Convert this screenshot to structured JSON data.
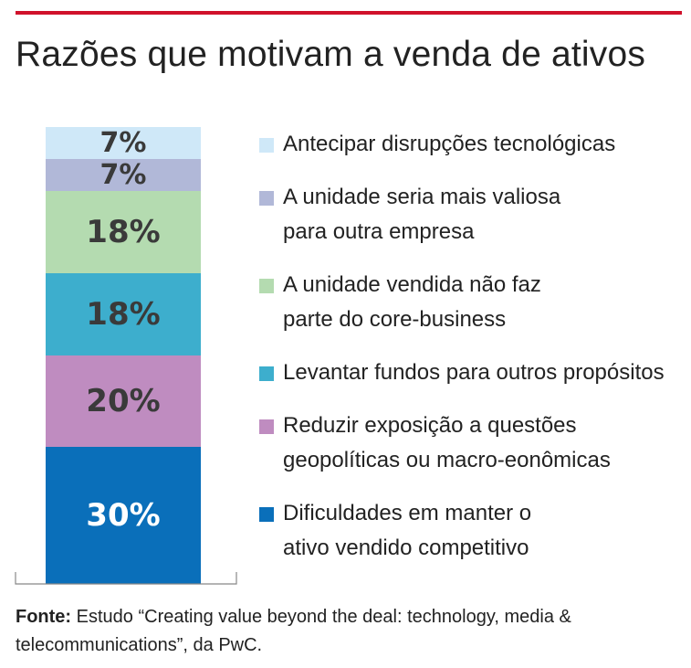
{
  "chart_data": {
    "type": "bar",
    "stacked": true,
    "title": "Razões que motivam a venda de ativos",
    "unit": "%",
    "series": [
      {
        "name": "Dificuldades em manter o\nativo vendido competitivo",
        "value": 30,
        "label": "30%",
        "color": "#0a6fba",
        "label_color": "#ffffff"
      },
      {
        "name": "Reduzir exposição a questões\ngeopolíticas ou macro-eonômicas",
        "value": 20,
        "label": "20%",
        "color": "#bf8cc0",
        "label_color": "#3a3a3a"
      },
      {
        "name": "Levantar fundos para outros propósitos",
        "value": 18,
        "label": "18%",
        "color": "#3daecd",
        "label_color": "#3a3a3a"
      },
      {
        "name": "A unidade vendida não faz\nparte do core-business",
        "value": 18,
        "label": "18%",
        "color": "#b4dbb0",
        "label_color": "#3a3a3a"
      },
      {
        "name": "A unidade  seria mais valiosa\npara outra empresa",
        "value": 7,
        "label": "7%",
        "color": "#b1b8d8",
        "label_color": "#3a3a3a"
      },
      {
        "name": "Antecipar disrupções tecnológicas",
        "value": 7,
        "label": "7%",
        "color": "#cfe8f8",
        "label_color": "#3a3a3a"
      }
    ],
    "total": 100
  },
  "legend_order": [
    5,
    4,
    3,
    2,
    1,
    0
  ],
  "source": {
    "label": "Fonte:",
    "text": " Estudo “Creating value beyond the deal: technology, media & telecommunications”, da PwC."
  }
}
